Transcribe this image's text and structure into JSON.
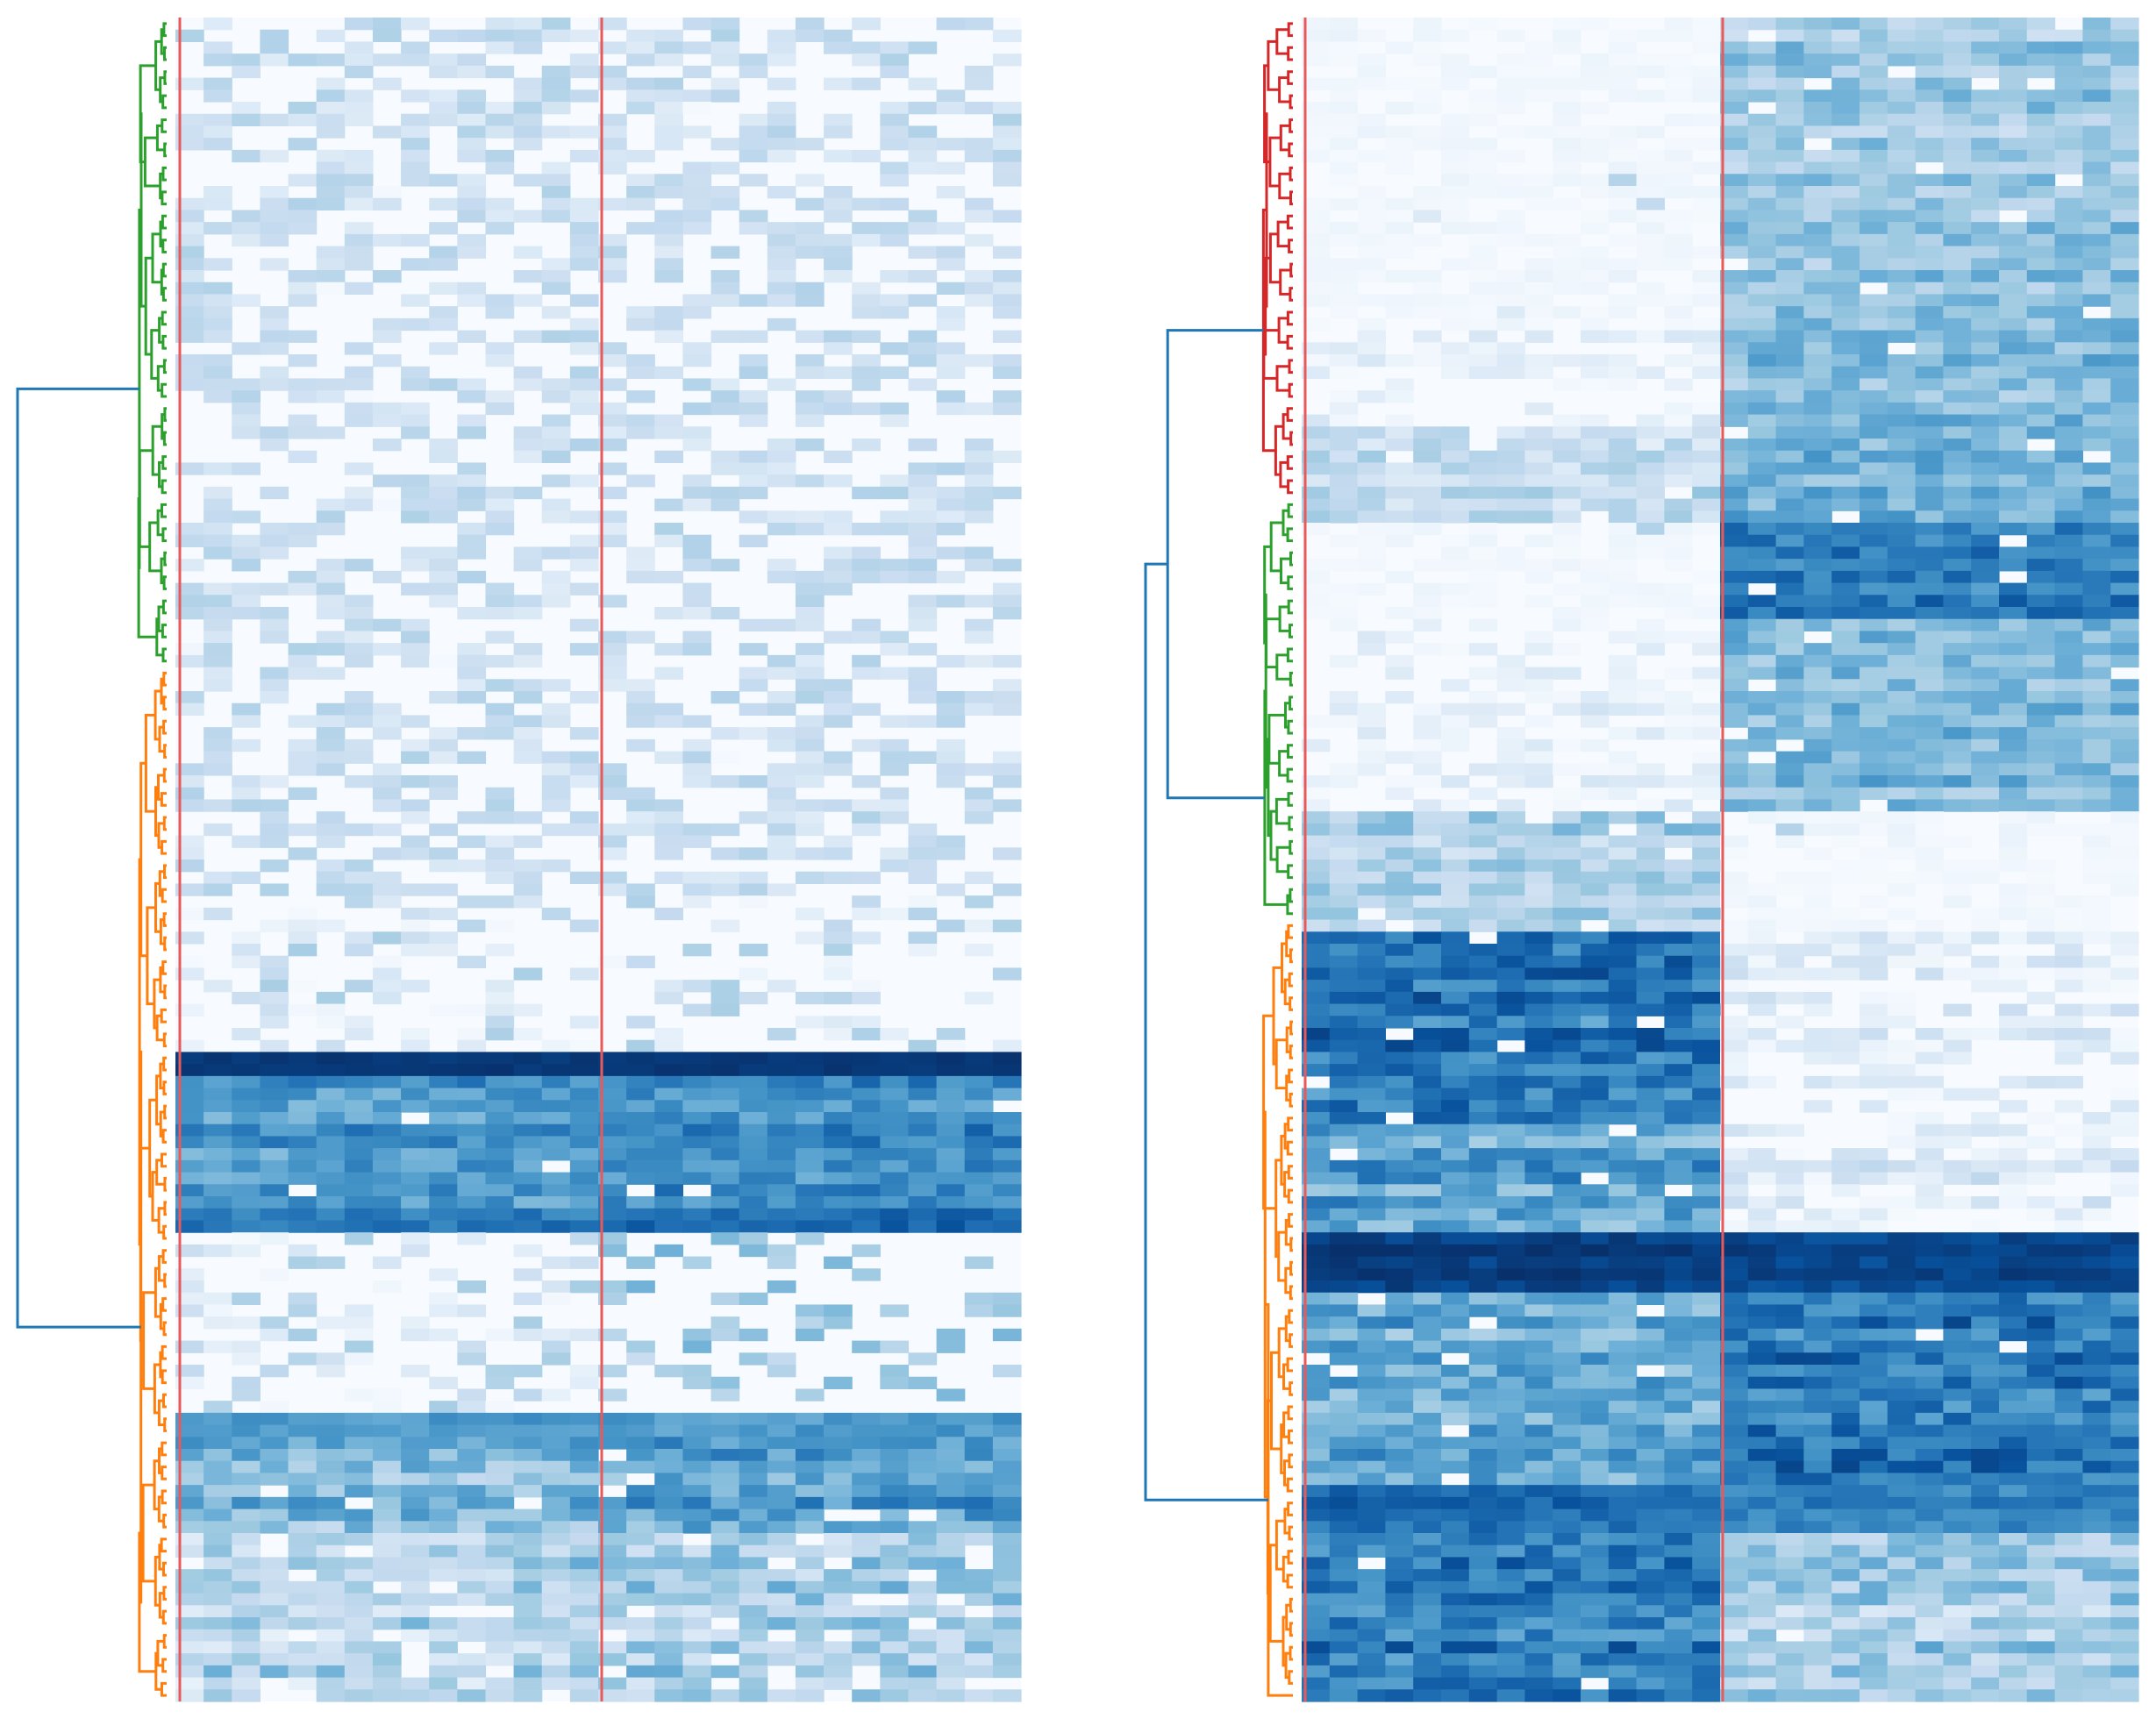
{
  "figure": {
    "panel_count": 2
  },
  "chart_data": [
    {
      "type": "heatmap",
      "panel": "left",
      "title": "",
      "xlabel": "",
      "ylabel": "",
      "colormap": "Blues",
      "value_range": [
        0,
        1
      ],
      "n_rows": 140,
      "n_cols": 30,
      "column_separators_after_col": [
        15
      ],
      "dendrogram": {
        "orientation": "left",
        "clusters": [
          {
            "color": "#2ca02c",
            "rows": [
              0,
              54
            ]
          },
          {
            "color": "#ff7f0e",
            "rows": [
              54,
              140
            ]
          }
        ],
        "root_color": "#1f77b4"
      },
      "row_blocks": [
        {
          "rows": [
            0,
            73
          ],
          "a": 0.0,
          "b": 0.0,
          "noise": 0.03,
          "sparse": 0.985
        },
        {
          "rows": [
            73,
            86
          ],
          "a": 0.1,
          "b": 0.07,
          "noise": 0.1,
          "sparse": 0.8
        },
        {
          "rows": [
            86,
            88
          ],
          "a": 0.98,
          "b": 0.98,
          "noise": 0.02,
          "sparse": 0.0
        },
        {
          "rows": [
            88,
            99
          ],
          "a": 0.6,
          "b": 0.65,
          "noise": 0.12,
          "sparse": 0.02
        },
        {
          "rows": [
            99,
            101
          ],
          "a": 0.7,
          "b": 0.78,
          "noise": 0.08,
          "sparse": 0.0
        },
        {
          "rows": [
            101,
            116
          ],
          "a": 0.04,
          "b": 0.35,
          "noise": 0.1,
          "sparse": 0.75
        },
        {
          "rows": [
            116,
            118
          ],
          "a": 0.55,
          "b": 0.55,
          "noise": 0.08,
          "sparse": 0.0
        },
        {
          "rows": [
            118,
            126
          ],
          "a": 0.45,
          "b": 0.55,
          "noise": 0.15,
          "sparse": 0.05
        },
        {
          "rows": [
            126,
            140
          ],
          "a": 0.3,
          "b": 0.35,
          "noise": 0.15,
          "sparse": 0.1
        }
      ]
    },
    {
      "type": "heatmap",
      "panel": "right",
      "title": "",
      "xlabel": "",
      "ylabel": "",
      "colormap": "Blues",
      "value_range": [
        0,
        1
      ],
      "n_rows": 140,
      "n_cols": 30,
      "column_separators_after_col": [
        15
      ],
      "dendrogram": {
        "orientation": "left",
        "clusters": [
          {
            "color": "#d62728",
            "rows": [
              0,
              40
            ]
          },
          {
            "color": "#2ca02c",
            "rows": [
              40,
              75
            ]
          },
          {
            "color": "#ff7f0e",
            "rows": [
              75,
              140
            ]
          }
        ],
        "root_color": "#1f77b4"
      },
      "row_blocks": [
        {
          "rows": [
            0,
            26
          ],
          "a": 0.0,
          "b": 0.38,
          "noise": 0.12,
          "sparse": 0.03
        },
        {
          "rows": [
            26,
            34
          ],
          "a": 0.05,
          "b": 0.45,
          "noise": 0.12,
          "sparse": 0.03
        },
        {
          "rows": [
            34,
            42
          ],
          "a": 0.25,
          "b": 0.5,
          "noise": 0.12,
          "sparse": 0.05
        },
        {
          "rows": [
            42,
            50
          ],
          "a": 0.0,
          "b": 0.72,
          "noise": 0.12,
          "sparse": 0.02
        },
        {
          "rows": [
            50,
            66
          ],
          "a": 0.03,
          "b": 0.45,
          "noise": 0.12,
          "sparse": 0.03
        },
        {
          "rows": [
            66,
            76
          ],
          "a": 0.32,
          "b": 0.0,
          "noise": 0.12,
          "sparse": 0.03
        },
        {
          "rows": [
            76,
            92
          ],
          "a": 0.72,
          "b": 0.03,
          "noise": 0.15,
          "sparse": 0.02
        },
        {
          "rows": [
            92,
            101
          ],
          "a": 0.55,
          "b": 0.05,
          "noise": 0.15,
          "sparse": 0.03
        },
        {
          "rows": [
            101,
            106
          ],
          "a": 0.95,
          "b": 0.92,
          "noise": 0.05,
          "sparse": 0.0
        },
        {
          "rows": [
            106,
            122
          ],
          "a": 0.5,
          "b": 0.7,
          "noise": 0.15,
          "sparse": 0.02
        },
        {
          "rows": [
            122,
            126
          ],
          "a": 0.78,
          "b": 0.68,
          "noise": 0.08,
          "sparse": 0.0
        },
        {
          "rows": [
            126,
            140
          ],
          "a": 0.7,
          "b": 0.35,
          "noise": 0.15,
          "sparse": 0.03
        }
      ]
    }
  ]
}
